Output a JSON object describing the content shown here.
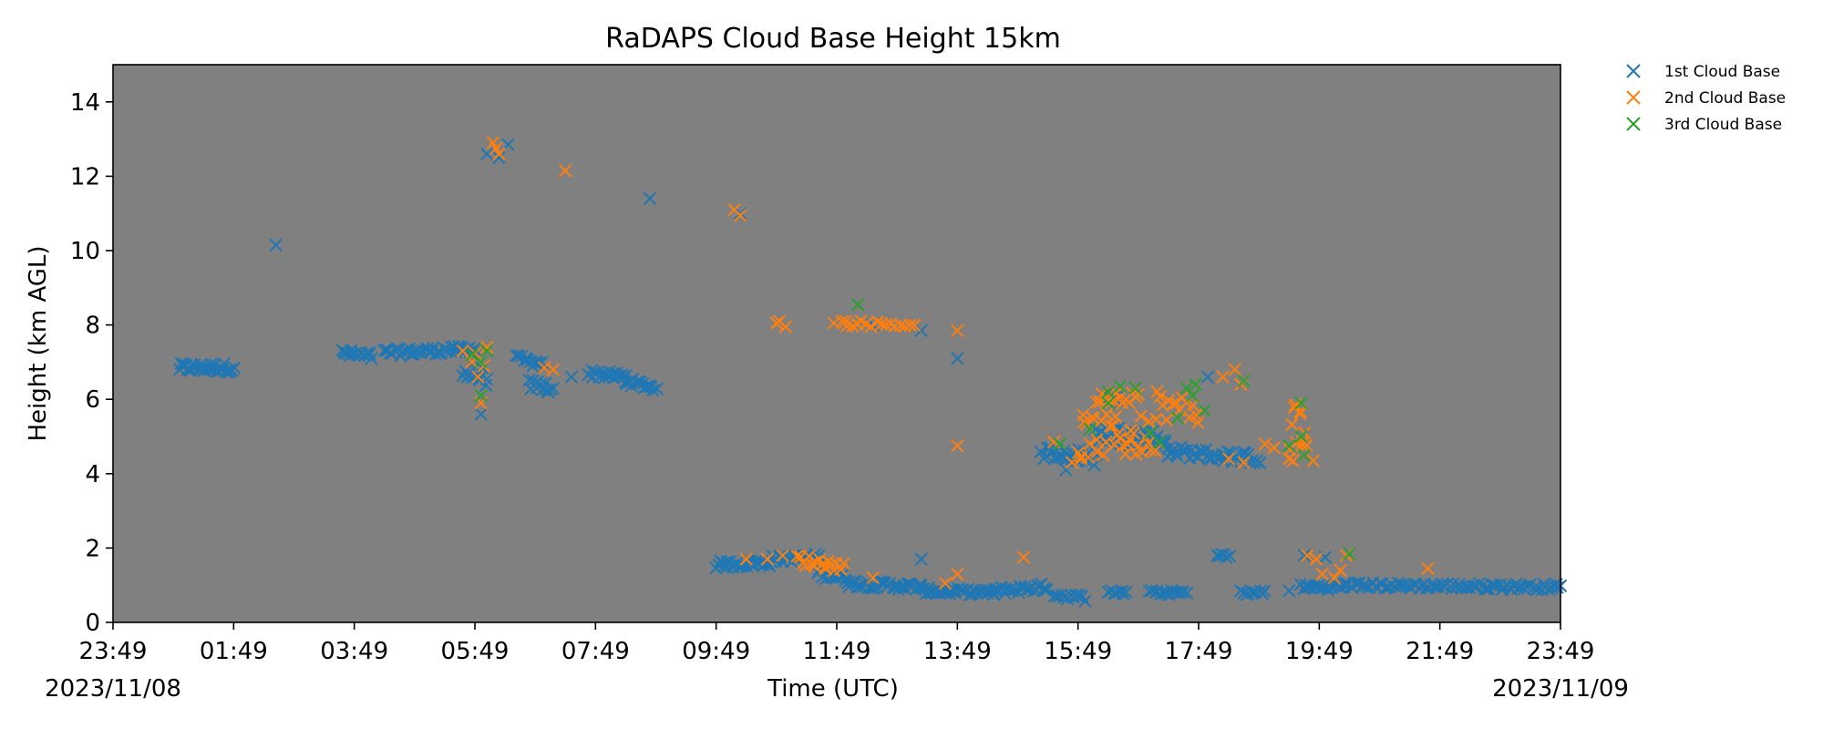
{
  "chart_data": {
    "type": "scatter",
    "title": "RaDAPS Cloud Base Height 15km",
    "xlabel": "Time (UTC)",
    "ylabel": "Height (km AGL)",
    "xlim": [
      0,
      24
    ],
    "ylim": [
      0,
      15
    ],
    "xticks": [
      {
        "x": 0,
        "label": "23:49",
        "date": "2023/11/08"
      },
      {
        "x": 2,
        "label": "01:49"
      },
      {
        "x": 4,
        "label": "03:49"
      },
      {
        "x": 6,
        "label": "05:49"
      },
      {
        "x": 8,
        "label": "07:49"
      },
      {
        "x": 10,
        "label": "09:49"
      },
      {
        "x": 12,
        "label": "11:49"
      },
      {
        "x": 14,
        "label": "13:49"
      },
      {
        "x": 16,
        "label": "15:49"
      },
      {
        "x": 18,
        "label": "17:49"
      },
      {
        "x": 20,
        "label": "19:49"
      },
      {
        "x": 22,
        "label": "21:49"
      },
      {
        "x": 24,
        "label": "23:49",
        "date": "2023/11/09"
      }
    ],
    "yticks": [
      0,
      2,
      4,
      6,
      8,
      10,
      12,
      14
    ],
    "grid": false,
    "background": "#808080",
    "legend_position": "outside-top-right",
    "series": [
      {
        "name": "1st Cloud Base",
        "color": "#1f77b4",
        "marker": "x",
        "segments": [
          {
            "x0": 1.1,
            "x1": 2.0,
            "y0": 6.85,
            "y1": 6.85,
            "jitter": 0.12,
            "n": 35
          },
          {
            "x0": 3.8,
            "x1": 4.3,
            "y0": 7.25,
            "y1": 7.15,
            "jitter": 0.1,
            "n": 18
          },
          {
            "x0": 4.5,
            "x1": 6.0,
            "y0": 7.25,
            "y1": 7.35,
            "jitter": 0.1,
            "n": 45
          },
          {
            "x0": 5.8,
            "x1": 6.2,
            "y0": 6.7,
            "y1": 6.6,
            "jitter": 0.25,
            "n": 12
          },
          {
            "x0": 6.7,
            "x1": 7.1,
            "y0": 7.1,
            "y1": 6.9,
            "jitter": 0.1,
            "n": 12
          },
          {
            "x0": 6.9,
            "x1": 7.3,
            "y0": 6.4,
            "y1": 6.3,
            "jitter": 0.15,
            "n": 12
          },
          {
            "x0": 7.9,
            "x1": 8.5,
            "y0": 6.7,
            "y1": 6.6,
            "jitter": 0.1,
            "n": 20
          },
          {
            "x0": 8.5,
            "x1": 9.0,
            "y0": 6.5,
            "y1": 6.3,
            "jitter": 0.1,
            "n": 16
          },
          {
            "x0": 10.0,
            "x1": 10.9,
            "y0": 1.55,
            "y1": 1.6,
            "jitter": 0.1,
            "n": 28
          },
          {
            "x0": 10.9,
            "x1": 11.7,
            "y0": 1.7,
            "y1": 1.75,
            "jitter": 0.1,
            "n": 24
          },
          {
            "x0": 11.7,
            "x1": 12.2,
            "y0": 1.35,
            "y1": 1.15,
            "jitter": 0.12,
            "n": 16
          },
          {
            "x0": 12.2,
            "x1": 13.4,
            "y0": 1.05,
            "y1": 0.95,
            "jitter": 0.1,
            "n": 36
          },
          {
            "x0": 13.4,
            "x1": 14.6,
            "y0": 0.85,
            "y1": 0.8,
            "jitter": 0.08,
            "n": 36
          },
          {
            "x0": 14.6,
            "x1": 15.5,
            "y0": 0.85,
            "y1": 0.95,
            "jitter": 0.1,
            "n": 26
          },
          {
            "x0": 15.6,
            "x1": 16.1,
            "y0": 0.75,
            "y1": 0.65,
            "jitter": 0.08,
            "n": 14
          },
          {
            "x0": 15.4,
            "x1": 16.3,
            "y0": 4.6,
            "y1": 4.4,
            "jitter": 0.2,
            "n": 26
          },
          {
            "x0": 16.3,
            "x1": 17.5,
            "y0": 5.1,
            "y1": 4.9,
            "jitter": 0.25,
            "n": 34
          },
          {
            "x0": 16.4,
            "x1": 16.7,
            "y0": 6.0,
            "y1": 6.0,
            "jitter": 0.15,
            "n": 8
          },
          {
            "x0": 17.5,
            "x1": 19.0,
            "y0": 4.6,
            "y1": 4.4,
            "jitter": 0.15,
            "n": 40
          },
          {
            "x0": 16.5,
            "x1": 16.8,
            "y0": 0.8,
            "y1": 0.8,
            "jitter": 0.06,
            "n": 8
          },
          {
            "x0": 17.2,
            "x1": 17.8,
            "y0": 0.8,
            "y1": 0.8,
            "jitter": 0.06,
            "n": 16
          },
          {
            "x0": 18.7,
            "x1": 19.1,
            "y0": 0.8,
            "y1": 0.8,
            "jitter": 0.06,
            "n": 10
          },
          {
            "x0": 18.3,
            "x1": 18.5,
            "y0": 1.8,
            "y1": 1.8,
            "jitter": 0.06,
            "n": 6
          },
          {
            "x0": 19.7,
            "x1": 20.4,
            "y0": 0.95,
            "y1": 0.95,
            "jitter": 0.08,
            "n": 18
          },
          {
            "x0": 20.4,
            "x1": 24.0,
            "y0": 1.0,
            "y1": 0.95,
            "jitter": 0.08,
            "n": 90
          }
        ],
        "points": [
          [
            2.7,
            10.15
          ],
          [
            6.4,
            12.5
          ],
          [
            6.55,
            12.85
          ],
          [
            6.2,
            12.6
          ],
          [
            8.9,
            11.4
          ],
          [
            10.4,
            11.0
          ],
          [
            11.95,
            8.05
          ],
          [
            12.6,
            8.0
          ],
          [
            13.4,
            7.85
          ],
          [
            14.0,
            7.1
          ],
          [
            6.1,
            5.6
          ],
          [
            7.6,
            6.6
          ],
          [
            15.8,
            4.1
          ],
          [
            13.4,
            1.7
          ],
          [
            19.5,
            0.85
          ],
          [
            19.8,
            0.95
          ],
          [
            19.75,
            1.8
          ],
          [
            20.1,
            1.75
          ],
          [
            18.15,
            6.6
          ]
        ]
      },
      {
        "name": "2nd Cloud Base",
        "color": "#ff7f0e",
        "marker": "x",
        "segments": [
          {
            "x0": 11.35,
            "x1": 12.1,
            "y0": 1.7,
            "y1": 1.5,
            "jitter": 0.15,
            "n": 18
          },
          {
            "x0": 12.1,
            "x1": 13.3,
            "y0": 8.05,
            "y1": 8.0,
            "jitter": 0.08,
            "n": 16
          },
          {
            "x0": 16.0,
            "x1": 17.3,
            "y0": 5.0,
            "y1": 5.0,
            "jitter": 0.6,
            "n": 36
          },
          {
            "x0": 16.3,
            "x1": 17.0,
            "y0": 6.1,
            "y1": 6.1,
            "jitter": 0.2,
            "n": 14
          },
          {
            "x0": 17.3,
            "x1": 18.0,
            "y0": 5.9,
            "y1": 5.6,
            "jitter": 0.4,
            "n": 14
          },
          {
            "x0": 19.5,
            "x1": 19.8,
            "y0": 5.2,
            "y1": 5.2,
            "jitter": 0.9,
            "n": 12
          }
        ],
        "points": [
          [
            6.3,
            12.9
          ],
          [
            6.4,
            12.6
          ],
          [
            6.35,
            12.75
          ],
          [
            7.5,
            12.15
          ],
          [
            10.3,
            11.1
          ],
          [
            10.4,
            10.95
          ],
          [
            5.8,
            7.3
          ],
          [
            5.95,
            7.0
          ],
          [
            6.2,
            7.4
          ],
          [
            6.05,
            6.6
          ],
          [
            6.1,
            5.9
          ],
          [
            6.0,
            7.25
          ],
          [
            6.15,
            6.9
          ],
          [
            7.15,
            6.85
          ],
          [
            7.3,
            6.8
          ],
          [
            11.0,
            8.05
          ],
          [
            11.15,
            7.95
          ],
          [
            11.05,
            8.1
          ],
          [
            11.95,
            8.05
          ],
          [
            12.15,
            8.1
          ],
          [
            14.0,
            7.85
          ],
          [
            14.0,
            4.75
          ],
          [
            10.5,
            1.7
          ],
          [
            10.85,
            1.7
          ],
          [
            11.1,
            1.8
          ],
          [
            11.4,
            1.75
          ],
          [
            12.6,
            1.2
          ],
          [
            13.8,
            1.05
          ],
          [
            14.0,
            1.3
          ],
          [
            15.1,
            1.75
          ],
          [
            15.6,
            4.85
          ],
          [
            15.9,
            4.3
          ],
          [
            16.2,
            4.8
          ],
          [
            16.05,
            4.4
          ],
          [
            18.4,
            6.6
          ],
          [
            18.6,
            6.8
          ],
          [
            18.7,
            6.4
          ],
          [
            18.75,
            6.5
          ],
          [
            18.5,
            4.4
          ],
          [
            18.75,
            4.3
          ],
          [
            19.1,
            4.8
          ],
          [
            19.25,
            4.7
          ],
          [
            19.5,
            4.4
          ],
          [
            19.75,
            4.5
          ],
          [
            19.9,
            4.35
          ],
          [
            19.8,
            1.8
          ],
          [
            19.95,
            1.7
          ],
          [
            20.05,
            1.3
          ],
          [
            20.25,
            1.2
          ],
          [
            20.35,
            1.4
          ],
          [
            20.45,
            1.8
          ],
          [
            21.8,
            1.45
          ]
        ]
      },
      {
        "name": "3rd Cloud Base",
        "color": "#2ca02c",
        "marker": "x",
        "segments": [],
        "points": [
          [
            6.1,
            7.0
          ],
          [
            5.95,
            7.2
          ],
          [
            6.1,
            6.1
          ],
          [
            6.2,
            7.3
          ],
          [
            12.35,
            8.55
          ],
          [
            15.7,
            4.8
          ],
          [
            16.2,
            5.2
          ],
          [
            16.5,
            5.9
          ],
          [
            16.5,
            6.2
          ],
          [
            16.7,
            6.35
          ],
          [
            16.95,
            6.3
          ],
          [
            17.2,
            5.1
          ],
          [
            17.35,
            4.85
          ],
          [
            17.65,
            5.5
          ],
          [
            17.8,
            6.3
          ],
          [
            17.9,
            6.1
          ],
          [
            17.95,
            6.4
          ],
          [
            18.1,
            5.7
          ],
          [
            18.75,
            6.5
          ],
          [
            19.5,
            4.75
          ],
          [
            19.7,
            5.0
          ],
          [
            19.7,
            5.9
          ],
          [
            19.75,
            4.5
          ],
          [
            20.5,
            1.85
          ]
        ]
      }
    ]
  }
}
